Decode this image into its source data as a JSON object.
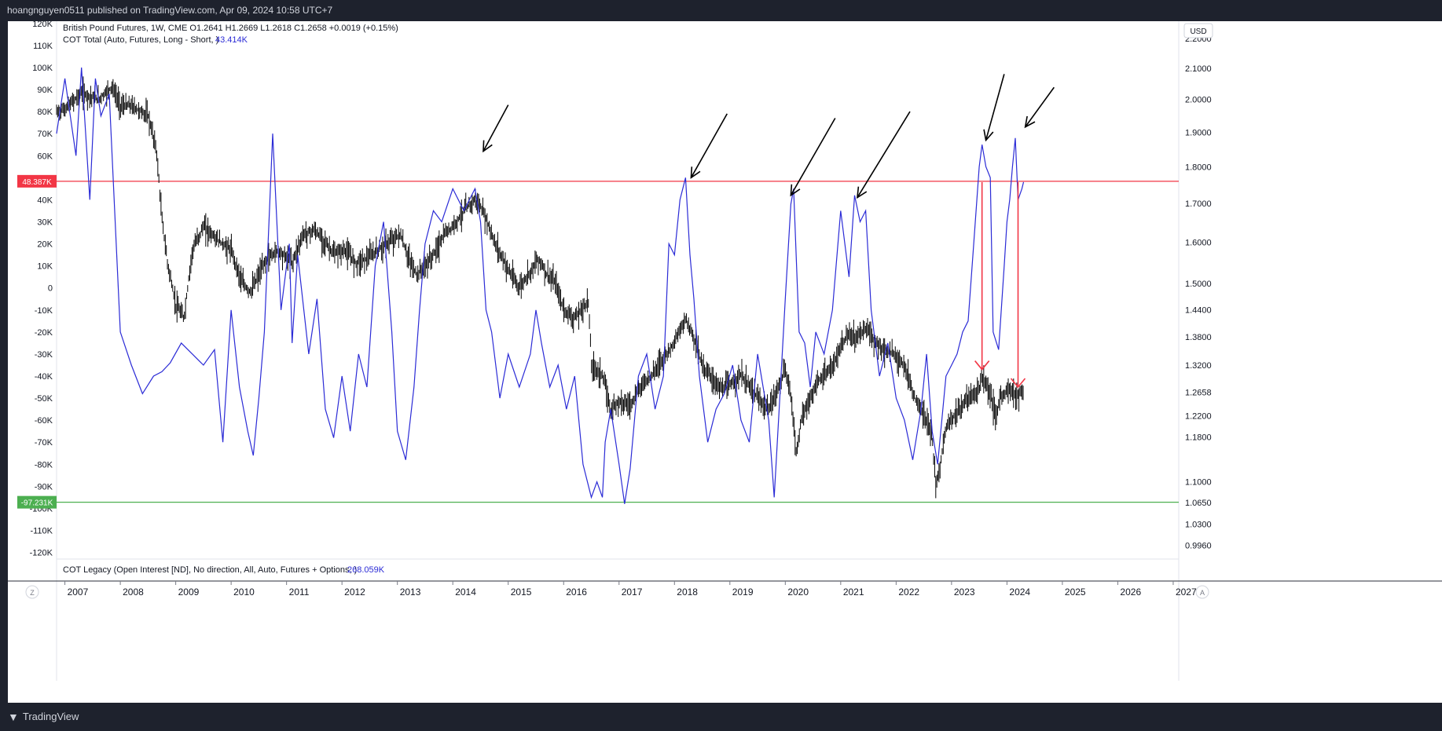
{
  "header": {
    "published": "hoangnguyen0511 published on TradingView.com, Apr 09, 2024 10:58 UTC+7"
  },
  "footer": {
    "brand": "TradingView"
  },
  "legend": {
    "line1": "British Pound Futures, 1W, CME  O1.2641  H1.2669  L1.2618  C1.2658  +0.0019 (+0.15%)",
    "line2_label": "COT Total (Auto, Futures, Long - Short, )",
    "line2_value": "43.414K",
    "pane2_label": "COT Legacy (Open Interest [ND], No direction, All, Auto, Futures + Options, )",
    "pane2_value": "268.059K"
  },
  "right_axis": {
    "currency": "USD",
    "last_price_label": "1.2658"
  },
  "bottom_axis": {
    "left_button": "Z",
    "right_button": "A"
  },
  "levels": {
    "red": {
      "value": 48387,
      "label": "48.387K",
      "color": "#f23645"
    },
    "green": {
      "value": -97231,
      "label": "-97.231K",
      "color": "#4caf50"
    }
  },
  "colors": {
    "cot": "#2b2bd6",
    "price": "#000000",
    "arrow": "#000000",
    "red_arrow": "#f23645"
  },
  "chart_data": {
    "type": "line",
    "x_ticks": [
      "2007",
      "2008",
      "2009",
      "2010",
      "2011",
      "2012",
      "2013",
      "2014",
      "2015",
      "2016",
      "2017",
      "2018",
      "2019",
      "2020",
      "2021",
      "2022",
      "2023",
      "2024",
      "2025",
      "2026",
      "2027"
    ],
    "x_range": [
      2006.85,
      2027.1
    ],
    "left_axis": {
      "ticks": [
        "120K",
        "110K",
        "100K",
        "90K",
        "80K",
        "70K",
        "60K",
        "50K",
        "40K",
        "30K",
        "20K",
        "10K",
        "0",
        "-10K",
        "-20K",
        "-30K",
        "-40K",
        "-50K",
        "-60K",
        "-70K",
        "-80K",
        "-90K",
        "-100K",
        "-110K",
        "-120K"
      ],
      "range": [
        -123000,
        121000
      ]
    },
    "right_axis": {
      "ticks": [
        "2.2000",
        "2.1000",
        "2.0000",
        "1.9000",
        "1.8000",
        "1.7000",
        "1.6000",
        "1.5000",
        "1.4400",
        "1.3800",
        "1.3200",
        "1.2200",
        "1.1800",
        "1.1000",
        "1.0650",
        "1.0300",
        "0.9960"
      ],
      "log": true,
      "range": [
        0.975,
        2.26
      ]
    },
    "series": [
      {
        "name": "COT Total (Auto, Futures, Long - Short, )",
        "x": [
          2006.85,
          2007.0,
          2007.2,
          2007.3,
          2007.45,
          2007.55,
          2007.65,
          2007.8,
          2008.0,
          2008.2,
          2008.4,
          2008.6,
          2008.75,
          2008.9,
          2009.1,
          2009.3,
          2009.5,
          2009.7,
          2009.85,
          2010.0,
          2010.15,
          2010.3,
          2010.4,
          2010.5,
          2010.6,
          2010.75,
          2010.9,
          2011.05,
          2011.1,
          2011.2,
          2011.4,
          2011.55,
          2011.7,
          2011.85,
          2012.0,
          2012.15,
          2012.3,
          2012.45,
          2012.6,
          2012.75,
          2012.9,
          2013.0,
          2013.15,
          2013.3,
          2013.4,
          2013.5,
          2013.65,
          2013.8,
          2014.0,
          2014.2,
          2014.4,
          2014.5,
          2014.6,
          2014.7,
          2014.85,
          2015.0,
          2015.2,
          2015.4,
          2015.5,
          2015.6,
          2015.75,
          2015.9,
          2016.05,
          2016.2,
          2016.35,
          2016.5,
          2016.6,
          2016.7,
          2016.75,
          2016.85,
          2017.0,
          2017.1,
          2017.2,
          2017.35,
          2017.5,
          2017.65,
          2017.8,
          2017.9,
          2018.0,
          2018.1,
          2018.2,
          2018.28,
          2018.35,
          2018.45,
          2018.6,
          2018.75,
          2018.9,
          2019.05,
          2019.2,
          2019.35,
          2019.5,
          2019.6,
          2019.7,
          2019.8,
          2019.9,
          2020.0,
          2020.1,
          2020.15,
          2020.25,
          2020.35,
          2020.45,
          2020.55,
          2020.7,
          2020.85,
          2021.0,
          2021.15,
          2021.25,
          2021.35,
          2021.45,
          2021.55,
          2021.7,
          2021.85,
          2022.0,
          2022.15,
          2022.3,
          2022.45,
          2022.55,
          2022.65,
          2022.75,
          2022.9,
          2023.0,
          2023.1,
          2023.2,
          2023.3,
          2023.4,
          2023.5,
          2023.55,
          2023.62,
          2023.7,
          2023.75,
          2023.85,
          2023.95,
          2024.0,
          2024.05,
          2024.1,
          2024.15,
          2024.2,
          2024.27,
          2024.3
        ],
        "values": [
          70000,
          95000,
          60000,
          100000,
          40000,
          95000,
          78000,
          88000,
          -20000,
          -35000,
          -48000,
          -40000,
          -38000,
          -34000,
          -25000,
          -30000,
          -35000,
          -28000,
          -70000,
          -10000,
          -45000,
          -65000,
          -76000,
          -50000,
          -20000,
          70000,
          -10000,
          20000,
          -25000,
          15000,
          -30000,
          -5000,
          -55000,
          -68000,
          -40000,
          -65000,
          -30000,
          -45000,
          10000,
          30000,
          -20000,
          -65000,
          -78000,
          -45000,
          -10000,
          20000,
          35000,
          30000,
          45000,
          35000,
          45000,
          30000,
          -10000,
          -20000,
          -50000,
          -30000,
          -45000,
          -30000,
          -10000,
          -25000,
          -45000,
          -35000,
          -55000,
          -40000,
          -80000,
          -95000,
          -88000,
          -95000,
          -70000,
          -55000,
          -80000,
          -98000,
          -82000,
          -40000,
          -30000,
          -55000,
          -40000,
          20000,
          15000,
          40000,
          50000,
          15000,
          -5000,
          -40000,
          -70000,
          -55000,
          -48000,
          -35000,
          -60000,
          -70000,
          -30000,
          -45000,
          -60000,
          -95000,
          -50000,
          -5000,
          38000,
          45000,
          -20000,
          -25000,
          -45000,
          -20000,
          -30000,
          -10000,
          35000,
          5000,
          42000,
          30000,
          35000,
          -10000,
          -40000,
          -25000,
          -50000,
          -60000,
          -78000,
          -55000,
          -30000,
          -65000,
          -80000,
          -40000,
          -35000,
          -30000,
          -20000,
          -15000,
          20000,
          55000,
          65000,
          55000,
          50000,
          -20000,
          -28000,
          10000,
          30000,
          40000,
          55000,
          68000,
          40000,
          45000,
          48000
        ]
      },
      {
        "name": "British Pound Futures, 1W, CME",
        "x": [
          2006.85,
          2007.0,
          2007.3,
          2007.6,
          2007.85,
          2008.0,
          2008.2,
          2008.5,
          2008.65,
          2008.75,
          2008.85,
          2009.0,
          2009.15,
          2009.3,
          2009.5,
          2009.65,
          2009.8,
          2010.0,
          2010.2,
          2010.35,
          2010.5,
          2010.65,
          2010.85,
          2011.1,
          2011.3,
          2011.5,
          2011.7,
          2011.85,
          2012.05,
          2012.25,
          2012.45,
          2012.65,
          2012.85,
          2013.05,
          2013.2,
          2013.35,
          2013.5,
          2013.7,
          2013.85,
          2014.0,
          2014.2,
          2014.4,
          2014.5,
          2014.6,
          2014.75,
          2014.9,
          2015.05,
          2015.2,
          2015.35,
          2015.55,
          2015.7,
          2015.85,
          2016.0,
          2016.2,
          2016.45,
          2016.5,
          2016.7,
          2016.85,
          2017.0,
          2017.2,
          2017.4,
          2017.6,
          2017.75,
          2017.9,
          2018.05,
          2018.2,
          2018.35,
          2018.5,
          2018.7,
          2018.85,
          2019.0,
          2019.2,
          2019.4,
          2019.6,
          2019.7,
          2019.85,
          2020.0,
          2020.1,
          2020.2,
          2020.3,
          2020.45,
          2020.6,
          2020.75,
          2020.9,
          2021.1,
          2021.3,
          2021.45,
          2021.6,
          2021.8,
          2022.0,
          2022.15,
          2022.35,
          2022.5,
          2022.65,
          2022.72,
          2022.78,
          2022.9,
          2023.05,
          2023.2,
          2023.35,
          2023.5,
          2023.55,
          2023.7,
          2023.8,
          2023.9,
          2024.05,
          2024.2,
          2024.3
        ],
        "values": [
          1.96,
          1.97,
          2.02,
          2.0,
          2.04,
          1.98,
          1.98,
          1.95,
          1.85,
          1.66,
          1.55,
          1.45,
          1.42,
          1.58,
          1.64,
          1.62,
          1.6,
          1.58,
          1.5,
          1.48,
          1.52,
          1.56,
          1.58,
          1.55,
          1.62,
          1.63,
          1.6,
          1.57,
          1.58,
          1.55,
          1.56,
          1.58,
          1.6,
          1.62,
          1.56,
          1.52,
          1.54,
          1.58,
          1.62,
          1.64,
          1.68,
          1.71,
          1.69,
          1.66,
          1.6,
          1.56,
          1.52,
          1.49,
          1.52,
          1.56,
          1.52,
          1.5,
          1.44,
          1.42,
          1.46,
          1.32,
          1.3,
          1.23,
          1.25,
          1.24,
          1.28,
          1.3,
          1.33,
          1.35,
          1.38,
          1.42,
          1.38,
          1.32,
          1.29,
          1.27,
          1.28,
          1.3,
          1.27,
          1.24,
          1.23,
          1.27,
          1.31,
          1.26,
          1.15,
          1.22,
          1.25,
          1.29,
          1.3,
          1.33,
          1.38,
          1.38,
          1.4,
          1.37,
          1.35,
          1.34,
          1.32,
          1.25,
          1.22,
          1.18,
          1.09,
          1.12,
          1.2,
          1.22,
          1.24,
          1.26,
          1.27,
          1.3,
          1.26,
          1.22,
          1.26,
          1.27,
          1.26,
          1.266
        ]
      }
    ]
  }
}
